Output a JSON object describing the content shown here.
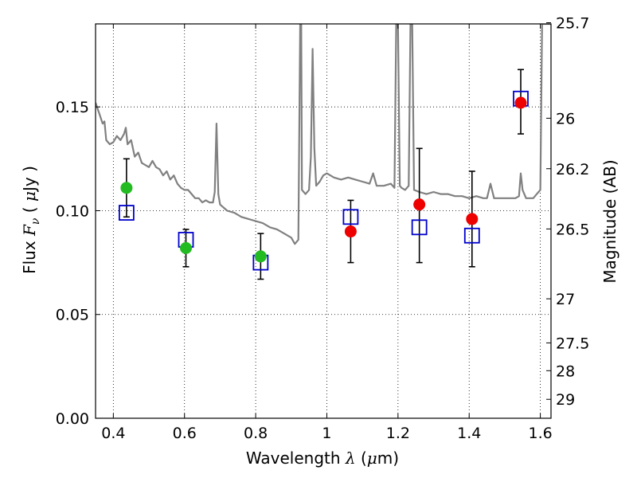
{
  "chart_data": {
    "type": "scatter",
    "title": "",
    "xlabel": {
      "prefix": "Wavelength",
      "symbol": "λ",
      "unit_open": " (",
      "unit_mu": "μ",
      "unit_rest": "m)"
    },
    "ylabel": {
      "prefix": "Flux",
      "symbol": "F",
      "subscript": "ν",
      "unit_open": " ( ",
      "unit_mu": "μ",
      "unit_rest": "Jy )"
    },
    "y2label": "Magnitude (AB)",
    "xlim": [
      0.35,
      1.63
    ],
    "ylim": [
      0.0,
      0.19
    ],
    "grid": true,
    "grid_style": "dotted",
    "x_ticks": [
      {
        "value": 0.4,
        "label": "0.4"
      },
      {
        "value": 0.6,
        "label": "0.6"
      },
      {
        "value": 0.8,
        "label": "0.8"
      },
      {
        "value": 1.0,
        "label": "1"
      },
      {
        "value": 1.2,
        "label": "1.2"
      },
      {
        "value": 1.4,
        "label": "1.4"
      },
      {
        "value": 1.6,
        "label": "1.6"
      }
    ],
    "y_ticks": [
      {
        "value": 0.0,
        "label": "0.00"
      },
      {
        "value": 0.05,
        "label": "0.05"
      },
      {
        "value": 0.1,
        "label": "0.10"
      },
      {
        "value": 0.15,
        "label": "0.15"
      }
    ],
    "y2_ticks": [
      {
        "value": 25.7,
        "label": "25.7"
      },
      {
        "value": 26.0,
        "label": "26"
      },
      {
        "value": 26.2,
        "label": "26.2"
      },
      {
        "value": 26.5,
        "label": "26.5"
      },
      {
        "value": 27.0,
        "label": "27"
      },
      {
        "value": 27.5,
        "label": "27.5"
      },
      {
        "value": 28.0,
        "label": "28"
      },
      {
        "value": 29.0,
        "label": "29"
      }
    ],
    "series": [
      {
        "kind": "line",
        "color": "#808080",
        "points": [
          [
            0.35,
            0.152
          ],
          [
            0.36,
            0.147
          ],
          [
            0.37,
            0.142
          ],
          [
            0.375,
            0.143
          ],
          [
            0.38,
            0.134
          ],
          [
            0.39,
            0.132
          ],
          [
            0.4,
            0.133
          ],
          [
            0.41,
            0.136
          ],
          [
            0.42,
            0.134
          ],
          [
            0.43,
            0.137
          ],
          [
            0.435,
            0.14
          ],
          [
            0.44,
            0.132
          ],
          [
            0.45,
            0.134
          ],
          [
            0.46,
            0.126
          ],
          [
            0.47,
            0.128
          ],
          [
            0.48,
            0.123
          ],
          [
            0.49,
            0.122
          ],
          [
            0.5,
            0.121
          ],
          [
            0.51,
            0.124
          ],
          [
            0.52,
            0.121
          ],
          [
            0.53,
            0.12
          ],
          [
            0.54,
            0.117
          ],
          [
            0.55,
            0.119
          ],
          [
            0.56,
            0.115
          ],
          [
            0.57,
            0.117
          ],
          [
            0.58,
            0.113
          ],
          [
            0.59,
            0.111
          ],
          [
            0.6,
            0.11
          ],
          [
            0.61,
            0.11
          ],
          [
            0.62,
            0.108
          ],
          [
            0.63,
            0.106
          ],
          [
            0.64,
            0.106
          ],
          [
            0.65,
            0.104
          ],
          [
            0.66,
            0.105
          ],
          [
            0.67,
            0.104
          ],
          [
            0.68,
            0.104
          ],
          [
            0.685,
            0.109
          ],
          [
            0.69,
            0.142
          ],
          [
            0.695,
            0.108
          ],
          [
            0.7,
            0.103
          ],
          [
            0.72,
            0.1
          ],
          [
            0.74,
            0.099
          ],
          [
            0.76,
            0.097
          ],
          [
            0.78,
            0.096
          ],
          [
            0.8,
            0.095
          ],
          [
            0.82,
            0.094
          ],
          [
            0.84,
            0.092
          ],
          [
            0.86,
            0.091
          ],
          [
            0.88,
            0.089
          ],
          [
            0.9,
            0.087
          ],
          [
            0.91,
            0.084
          ],
          [
            0.92,
            0.086
          ],
          [
            0.925,
            0.19
          ],
          [
            0.928,
            0.19
          ],
          [
            0.93,
            0.11
          ],
          [
            0.94,
            0.108
          ],
          [
            0.95,
            0.11
          ],
          [
            0.955,
            0.126
          ],
          [
            0.96,
            0.178
          ],
          [
            0.965,
            0.13
          ],
          [
            0.97,
            0.112
          ],
          [
            0.98,
            0.114
          ],
          [
            0.99,
            0.117
          ],
          [
            1.0,
            0.118
          ],
          [
            1.02,
            0.116
          ],
          [
            1.04,
            0.115
          ],
          [
            1.06,
            0.116
          ],
          [
            1.08,
            0.115
          ],
          [
            1.1,
            0.114
          ],
          [
            1.12,
            0.113
          ],
          [
            1.13,
            0.118
          ],
          [
            1.14,
            0.112
          ],
          [
            1.16,
            0.112
          ],
          [
            1.18,
            0.113
          ],
          [
            1.19,
            0.111
          ],
          [
            1.195,
            0.19
          ],
          [
            1.2,
            0.19
          ],
          [
            1.205,
            0.112
          ],
          [
            1.21,
            0.111
          ],
          [
            1.22,
            0.11
          ],
          [
            1.23,
            0.112
          ],
          [
            1.235,
            0.19
          ],
          [
            1.24,
            0.19
          ],
          [
            1.245,
            0.11
          ],
          [
            1.26,
            0.109
          ],
          [
            1.28,
            0.108
          ],
          [
            1.3,
            0.109
          ],
          [
            1.32,
            0.108
          ],
          [
            1.34,
            0.108
          ],
          [
            1.36,
            0.107
          ],
          [
            1.38,
            0.107
          ],
          [
            1.4,
            0.106
          ],
          [
            1.42,
            0.107
          ],
          [
            1.44,
            0.106
          ],
          [
            1.45,
            0.106
          ],
          [
            1.46,
            0.113
          ],
          [
            1.47,
            0.106
          ],
          [
            1.49,
            0.106
          ],
          [
            1.51,
            0.106
          ],
          [
            1.53,
            0.106
          ],
          [
            1.54,
            0.107
          ],
          [
            1.545,
            0.118
          ],
          [
            1.55,
            0.11
          ],
          [
            1.56,
            0.106
          ],
          [
            1.58,
            0.106
          ],
          [
            1.59,
            0.108
          ],
          [
            1.6,
            0.11
          ],
          [
            1.605,
            0.19
          ],
          [
            1.63,
            0.19
          ]
        ]
      },
      {
        "kind": "errorbar",
        "color": "#000000",
        "points": [
          {
            "x": 0.437,
            "y": 0.111,
            "lo": 0.097,
            "hi": 0.125
          },
          {
            "x": 0.604,
            "y": 0.082,
            "lo": 0.073,
            "hi": 0.091
          },
          {
            "x": 0.814,
            "y": 0.078,
            "lo": 0.067,
            "hi": 0.089
          },
          {
            "x": 1.067,
            "y": 0.09,
            "lo": 0.075,
            "hi": 0.105
          },
          {
            "x": 1.26,
            "y": 0.103,
            "lo": 0.075,
            "hi": 0.13
          },
          {
            "x": 1.408,
            "y": 0.096,
            "lo": 0.073,
            "hi": 0.119
          },
          {
            "x": 1.545,
            "y": 0.152,
            "lo": 0.137,
            "hi": 0.168
          }
        ]
      },
      {
        "kind": "square",
        "color": "#0000cc",
        "points": [
          [
            0.437,
            0.099
          ],
          [
            0.604,
            0.086
          ],
          [
            0.814,
            0.075
          ],
          [
            1.067,
            0.097
          ],
          [
            1.26,
            0.092
          ],
          [
            1.408,
            0.088
          ],
          [
            1.545,
            0.154
          ]
        ]
      },
      {
        "kind": "circle",
        "color": "#22bb22",
        "points": [
          [
            0.437,
            0.111
          ],
          [
            0.604,
            0.082
          ],
          [
            0.814,
            0.078
          ]
        ]
      },
      {
        "kind": "circle",
        "color": "#ee0000",
        "points": [
          [
            1.067,
            0.09
          ],
          [
            1.26,
            0.103
          ],
          [
            1.408,
            0.096
          ],
          [
            1.545,
            0.152
          ]
        ]
      }
    ]
  }
}
